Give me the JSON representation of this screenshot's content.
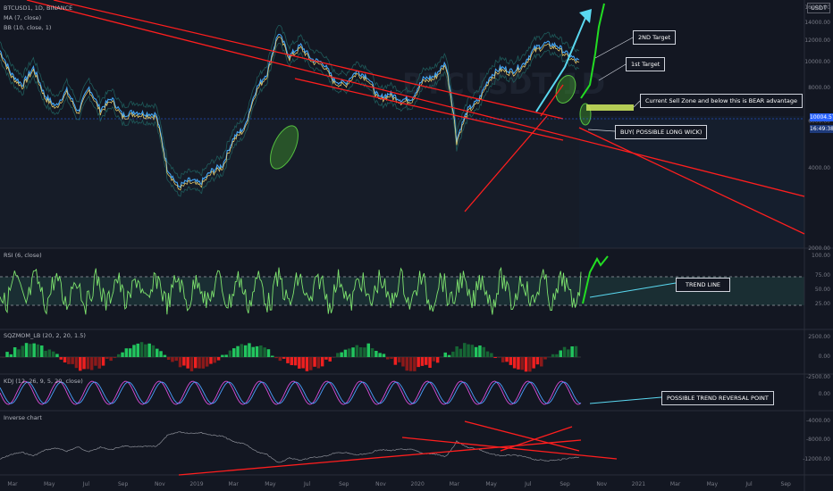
{
  "legend": {
    "symbol": "BTCUSD1, 1D, BINANCE",
    "ma": "MA (7, close)",
    "bb": "BB (10, close, 1)"
  },
  "currency": "USDT",
  "last_price": "10004.57",
  "countdown": "16:49:38",
  "annotations": {
    "target2": "2ND Target",
    "target1": "1st Target",
    "sell_zone": "Current Sell Zone and below this is BEAR advantage",
    "buy": "BUY( POSSIBLE LONG WICK)",
    "trend_line": "TREND LINE",
    "reversal": "POSSIBLE TREND REVERSAL POINT"
  },
  "panes": {
    "rsi": "RSI (6, close)",
    "sqz": "SQZMOM_LB (20, 2, 20, 1.5)",
    "kdj": "KDJ (12, 26, 9, 5, 20, close)",
    "inverse": "Inverse chart"
  },
  "colors": {
    "background": "#131722",
    "price_line": "#42a5f5",
    "trend_lines": "#ff1e1e",
    "rsi_line": "#7ee36e",
    "rsi_band": "#1a2e33",
    "target_arrow_cyan": "#5ad8f0",
    "target_arrow_green": "#22dd22",
    "sell_zone": "#c6e05b"
  },
  "chart_data": [
    {
      "type": "line",
      "title": "BTCUSD1, 1D, BINANCE",
      "ylabel": "USDT",
      "y_ticks": [
        "16000.00",
        "14000.00",
        "12000.00",
        "10000.00",
        "8000.00",
        "6000.00",
        "4000.00",
        "2000.00"
      ],
      "ylim": [
        2000,
        17000
      ],
      "scale": "log",
      "x_ticks": [
        "Mar",
        "May",
        "Jul",
        "Sep",
        "Nov",
        "2019",
        "Mar",
        "May",
        "Jul",
        "Sep",
        "Nov",
        "2020",
        "Mar",
        "May",
        "Jul",
        "Sep",
        "Nov",
        "2021",
        "Mar",
        "May",
        "Jul",
        "Sep"
      ],
      "series": [
        {
          "values": [
            11000,
            9000,
            8200,
            9500,
            7500,
            6800,
            7800,
            6500,
            8000,
            6600,
            7300,
            6300,
            6500,
            6400,
            6350,
            4000,
            3400,
            3600,
            3500,
            3900,
            4100,
            5200,
            5700,
            7900,
            9100,
            12800,
            10500,
            11500,
            10200,
            9900,
            8500,
            8300,
            9200,
            8800,
            7300,
            7600,
            7200,
            7300,
            8600,
            8800,
            9900,
            5100,
            6600,
            7200,
            8800,
            9500,
            9200,
            9800,
            11200,
            11700,
            11500,
            10600,
            10000
          ]
        }
      ]
    },
    {
      "type": "line",
      "title": "RSI (6, close)",
      "y_ticks": [
        "100.00",
        "75.00",
        "50.00",
        "25.00"
      ],
      "ylim": [
        0,
        100
      ]
    },
    {
      "type": "bar",
      "title": "SQZMOM_LB (20, 2, 20, 1.5)",
      "y_ticks": [
        "2500.00",
        "0.00",
        "-2500.00"
      ]
    },
    {
      "type": "line",
      "title": "KDJ (12, 26, 9, 5, 20, close)",
      "y_ticks": [
        "0.00"
      ]
    },
    {
      "type": "line",
      "title": "Inverse chart",
      "y_ticks": [
        "-4000.00",
        "-8000.00",
        "-12000.00"
      ]
    }
  ]
}
